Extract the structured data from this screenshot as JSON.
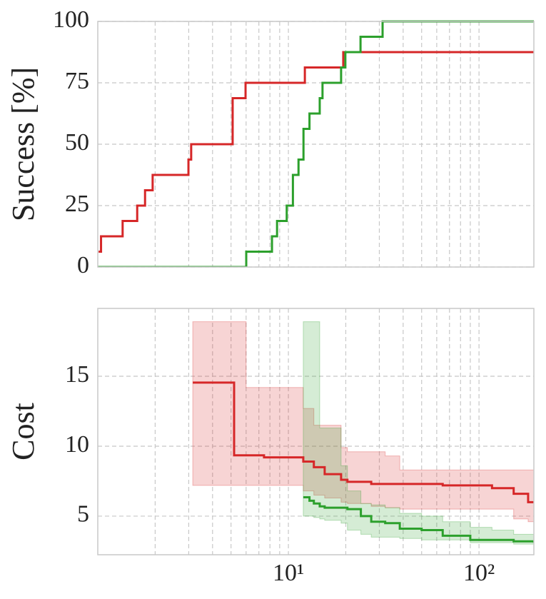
{
  "chart_data": [
    {
      "type": "line",
      "ylabel": "Success [%]",
      "xscale": "log",
      "xlim": [
        1,
        194
      ],
      "ylim": [
        0,
        100
      ],
      "yticks": [
        0,
        25,
        50,
        75,
        100
      ],
      "xgrid": [
        2,
        3,
        4,
        5,
        6,
        7,
        8,
        9,
        10,
        20,
        30,
        40,
        50,
        60,
        70,
        80,
        90,
        100
      ],
      "grid": true,
      "step": "post",
      "series": [
        {
          "name": "red",
          "color": "#d62728",
          "x": [
            1.01,
            1.04,
            1.35,
            1.61,
            1.77,
            1.94,
            2.99,
            3.09,
            5.1,
            5.96,
            12.2,
            19.4,
            194
          ],
          "values": [
            6.25,
            12.5,
            18.75,
            25,
            31.25,
            37.5,
            43.75,
            50,
            68.75,
            75,
            81.25,
            87.5,
            87.5
          ]
        },
        {
          "name": "green",
          "color": "#2ca02c",
          "x": [
            1,
            6.01,
            8.2,
            8.72,
            9.8,
            10.56,
            11.3,
            12.0,
            12.9,
            14.6,
            15.1,
            18.9,
            19.9,
            23.9,
            31.2,
            194
          ],
          "values": [
            0,
            6.25,
            12.5,
            18.75,
            25,
            37.5,
            43.75,
            56.25,
            62.5,
            68.75,
            75,
            81.25,
            87.5,
            93.75,
            100,
            100
          ]
        }
      ]
    },
    {
      "type": "line",
      "ylabel": "Cost",
      "xscale": "log",
      "xlim": [
        1,
        194
      ],
      "ylim": [
        2.24,
        19.85
      ],
      "yticks": [
        5,
        10,
        15
      ],
      "xticks": [
        {
          "value": 10,
          "label": "10¹"
        },
        {
          "value": 100,
          "label": "10²"
        }
      ],
      "xgrid": [
        2,
        3,
        4,
        5,
        6,
        7,
        8,
        9,
        10,
        20,
        30,
        40,
        50,
        60,
        70,
        80,
        90,
        100
      ],
      "grid": true,
      "step": "post",
      "series": [
        {
          "name": "red",
          "color": "#d62728",
          "x": [
            3.15,
            4.97,
            5.19,
            6.0,
            7.45,
            11.97,
            13.6,
            15.5,
            18.9,
            20.4,
            27.2,
            32.2,
            38.4,
            64.5,
            117,
            152,
            181,
            194
          ],
          "values": [
            14.55,
            14.55,
            9.35,
            9.35,
            9.2,
            8.9,
            8.5,
            8.0,
            7.6,
            7.45,
            7.3,
            7.3,
            7.3,
            7.2,
            7.0,
            6.6,
            6.0,
            6.0
          ],
          "lower": [
            7.2,
            7.2,
            7.2,
            7.2,
            7.2,
            6.8,
            6.5,
            6.3,
            6.0,
            5.9,
            5.7,
            5.6,
            5.5,
            5.5,
            5.5,
            4.8,
            4.6,
            4.6
          ],
          "upper": [
            18.9,
            18.9,
            18.9,
            14.2,
            14.2,
            12.7,
            11.5,
            11.5,
            9.9,
            9.6,
            9.6,
            9.3,
            8.3,
            8.3,
            8.3,
            8.3,
            8.3,
            8.3
          ]
        },
        {
          "name": "green",
          "color": "#2ca02c",
          "x": [
            11.97,
            12.9,
            13.6,
            14.6,
            15.5,
            18.9,
            20.4,
            24,
            27.2,
            32.2,
            38.4,
            50,
            64.5,
            90,
            117,
            152,
            194
          ],
          "values": [
            6.35,
            6.1,
            5.9,
            5.7,
            5.6,
            5.6,
            5.5,
            5.0,
            4.6,
            4.5,
            4.1,
            4.0,
            3.6,
            3.3,
            3.3,
            3.2,
            3.1
          ],
          "lower": [
            5.0,
            5.0,
            4.9,
            4.8,
            4.7,
            4.5,
            4.0,
            3.7,
            3.5,
            3.5,
            3.4,
            3.3,
            3.3,
            3.1,
            3.1,
            3.0,
            3.0
          ],
          "upper": [
            18.9,
            18.9,
            18.9,
            11.3,
            11.3,
            8.6,
            6.8,
            5.9,
            5.8,
            5.6,
            5.2,
            5.0,
            4.6,
            4.2,
            4.0,
            3.7,
            3.6
          ]
        }
      ]
    }
  ]
}
